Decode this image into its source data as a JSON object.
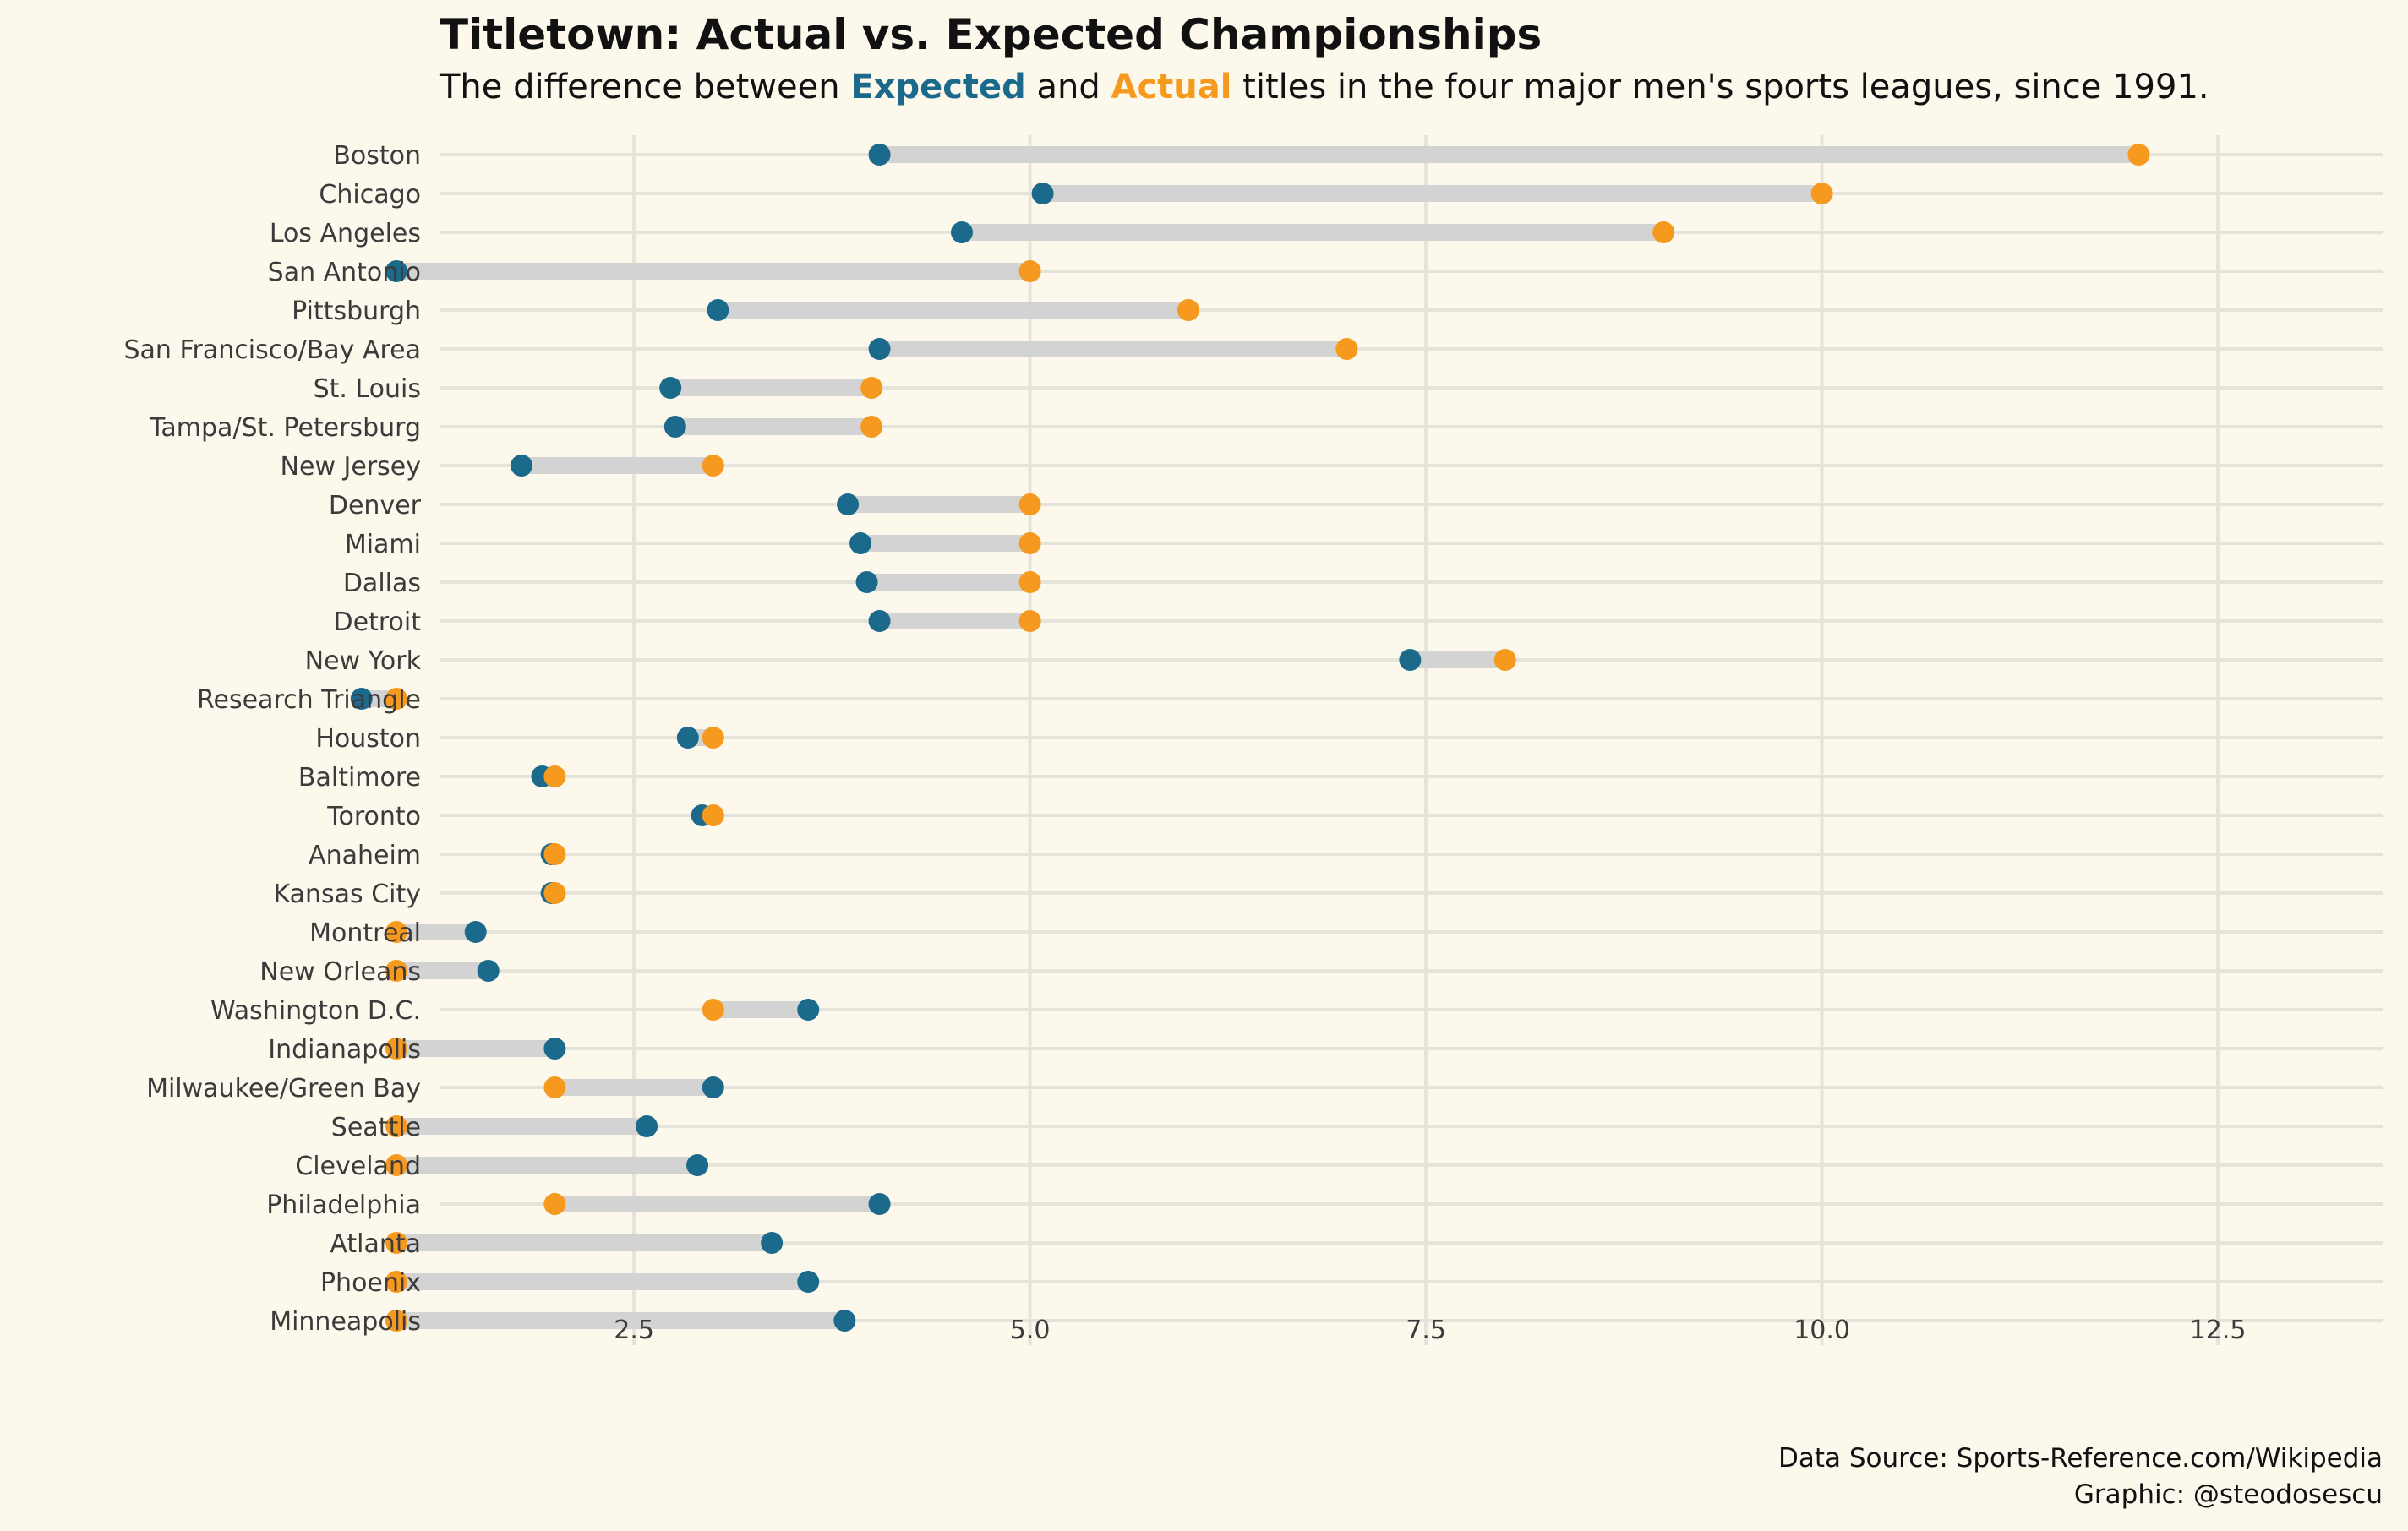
{
  "chart_data": {
    "type": "dumbbell",
    "title": "Titletown: Actual vs. Expected Championships",
    "subtitle": {
      "pre": "The difference between ",
      "expected_word": "Expected",
      "mid": " and ",
      "actual_word": "Actual",
      "post": " titles in the four major men's sports leagues, since 1991."
    },
    "x_ticks": [
      "2.5",
      "5.0",
      "7.5",
      "10.0",
      "12.5"
    ],
    "xlim": [
      0.25,
      12.5
    ],
    "grid": true,
    "colors": {
      "expected": "#1b6a8c",
      "actual": "#f5991f",
      "segment": "#d3d3d3",
      "grid": "#e6e3da",
      "background": "#fdf8ec"
    },
    "categories": [
      "Boston",
      "Chicago",
      "Los Angeles",
      "San Antonio",
      "Pittsburgh",
      "San Francisco/Bay Area",
      "St. Louis",
      "Tampa/St. Petersburg",
      "New Jersey",
      "Denver",
      "Miami",
      "Dallas",
      "Detroit",
      "New York",
      "Research Triangle",
      "Houston",
      "Baltimore",
      "Toronto",
      "Anaheim",
      "Kansas City",
      "Montreal",
      "New Orleans",
      "Washington D.C.",
      "Indianapolis",
      "Milwaukee/Green Bay",
      "Seattle",
      "Cleveland",
      "Philadelphia",
      "Atlanta",
      "Phoenix",
      "Minneapolis"
    ],
    "series": [
      {
        "name": "Expected",
        "values": [
          4.05,
          5.08,
          4.57,
          1.0,
          3.03,
          4.05,
          2.73,
          2.76,
          1.79,
          3.85,
          3.93,
          3.97,
          4.05,
          7.4,
          0.78,
          2.84,
          1.92,
          2.93,
          1.98,
          1.98,
          1.5,
          1.58,
          3.6,
          2.0,
          3.0,
          2.58,
          2.9,
          4.05,
          3.37,
          3.6,
          3.83
        ]
      },
      {
        "name": "Actual",
        "values": [
          12,
          10,
          9,
          5,
          6,
          7,
          4,
          4,
          3,
          5,
          5,
          5,
          5,
          8,
          1,
          3,
          2,
          3,
          2,
          2,
          1,
          1,
          3,
          1,
          2,
          1,
          1,
          2,
          1,
          1,
          1
        ]
      }
    ]
  },
  "caption": {
    "source": "Data Source: Sports-Reference.com/Wikipedia",
    "credit": "Graphic: @steodosescu"
  }
}
